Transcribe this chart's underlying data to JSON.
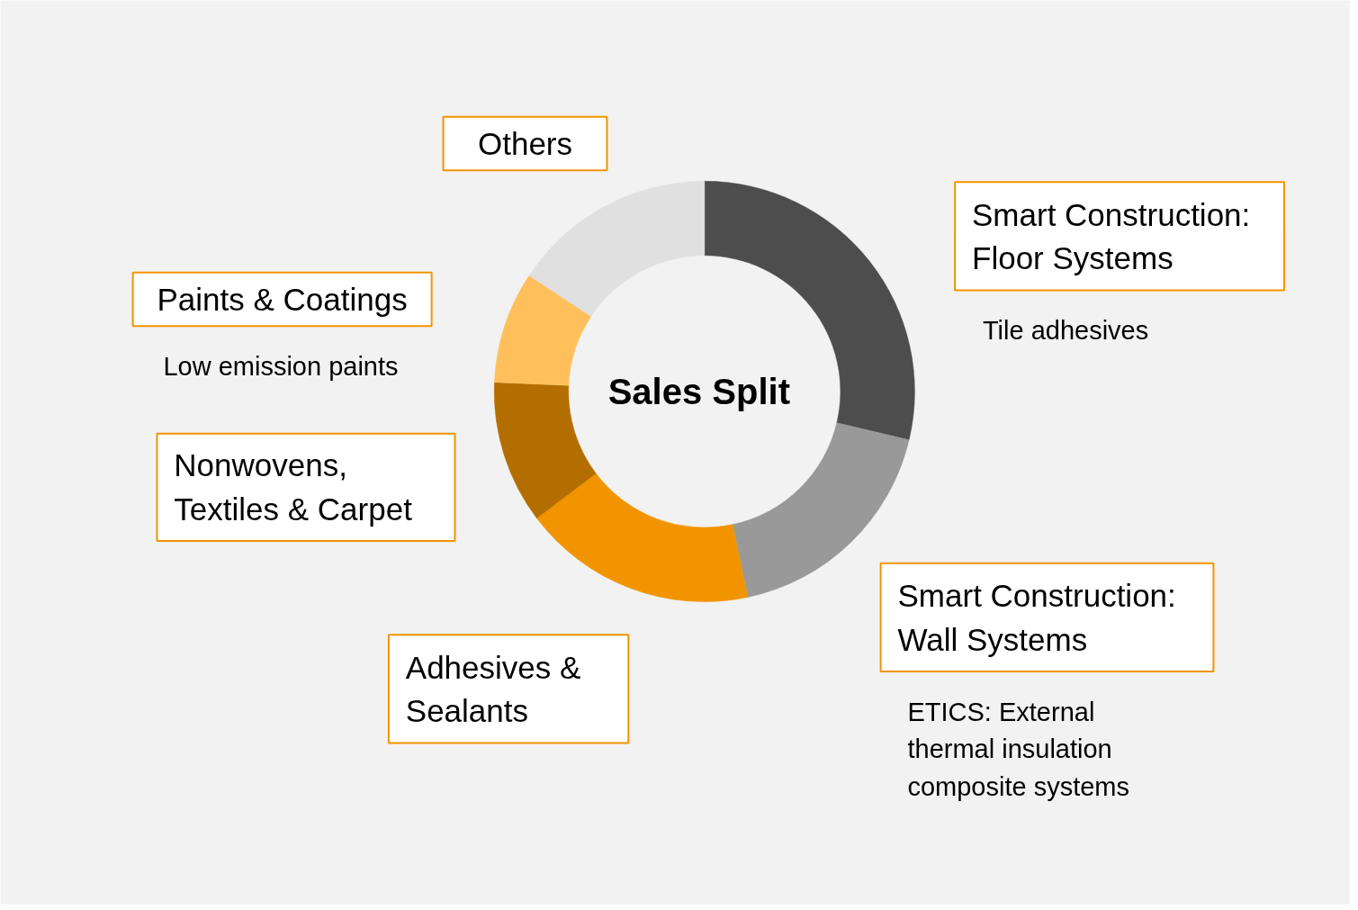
{
  "chart_data": {
    "type": "donut",
    "title": "Sales Split",
    "categories": [
      "Smart Construction: Floor Systems",
      "Smart Construction: Wall Systems",
      "Adhesives & Sealants",
      "Nonwovens, Textiles & Carpet",
      "Paints & Coatings",
      "Others"
    ],
    "values": [
      28.7,
      18,
      18,
      11,
      8.6,
      15.7
    ],
    "colors": [
      "#4d4d4d",
      "#999999",
      "#f29400",
      "#b46e00",
      "#ffc05c",
      "#e0e0e0"
    ],
    "annotations": [
      "Tile adhesives",
      "ETICS: External thermal insulation composite systems",
      "Low emission paints"
    ]
  }
}
